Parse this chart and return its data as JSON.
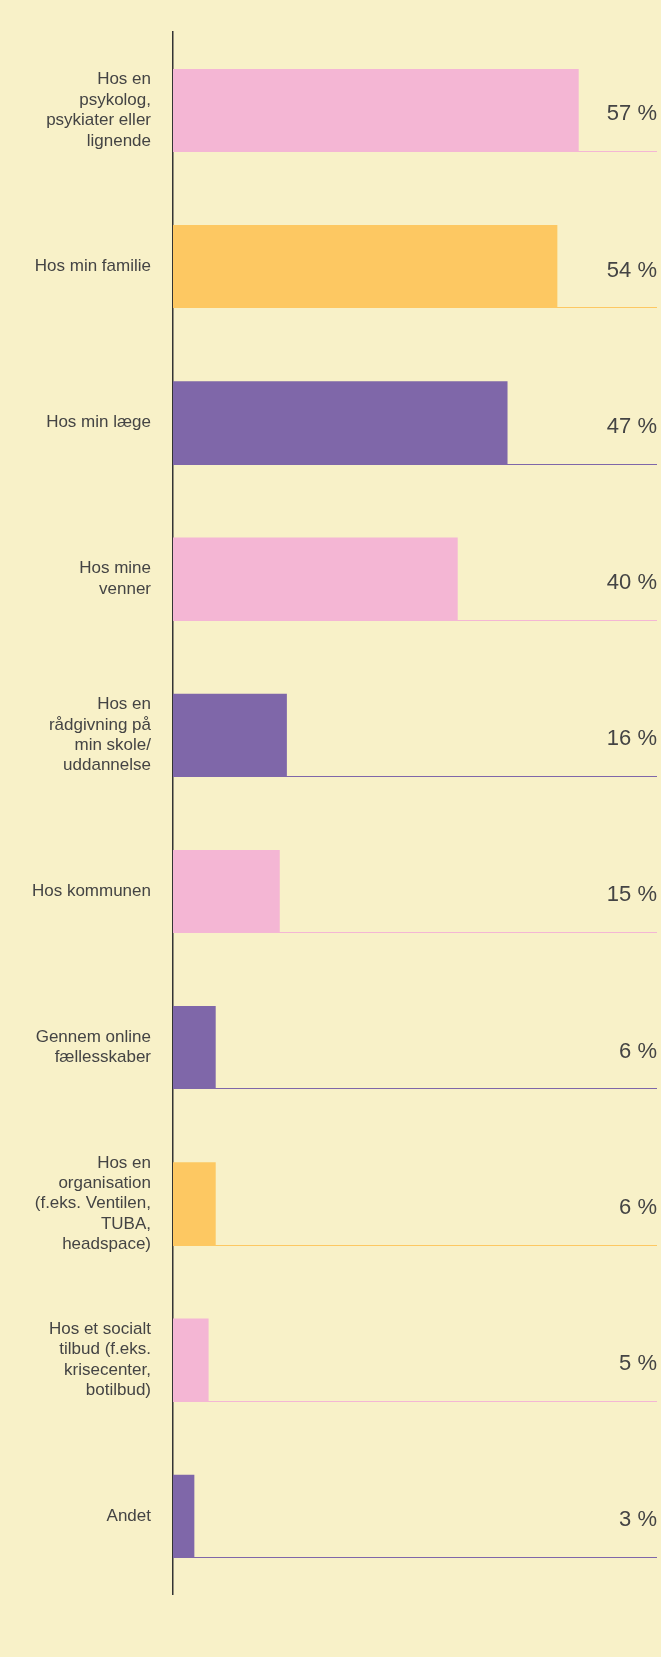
{
  "chart_data": {
    "type": "bar",
    "orientation": "horizontal",
    "categories": [
      "Hos en psykolog, psykiater eller lignende",
      "Hos min familie",
      "Hos min læge",
      "Hos mine venner",
      "Hos en rådgivning på min skole/ uddannelse",
      "Hos kommunen",
      "Gennem online fællesskaber",
      "Hos en organisation (f.eks. Ventilen, TUBA, headspace)",
      "Hos et socialt tilbud (f.eks. krisecenter, botilbud)",
      "Andet"
    ],
    "values": [
      57,
      54,
      47,
      40,
      16,
      15,
      6,
      6,
      5,
      3
    ],
    "colors": [
      "#f4b6d4",
      "#fdc862",
      "#7f67a9",
      "#f4b6d4",
      "#7f67a9",
      "#f4b6d4",
      "#7f67a9",
      "#fdc862",
      "#f4b6d4",
      "#7f67a9"
    ],
    "value_labels": [
      "57 %",
      "54 %",
      "47 %",
      "40 %",
      "16 %",
      "15 %",
      "6 %",
      "6 %",
      "5 %",
      "3 %"
    ],
    "xlim": [
      0,
      68
    ],
    "legend": false
  }
}
